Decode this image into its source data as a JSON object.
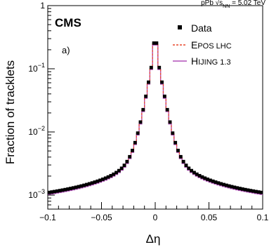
{
  "chart_data": {
    "type": "line",
    "title": "",
    "top_label": "pPb √s_NN = 5.02 TeV",
    "experiment": "CMS",
    "panel_label": "a)",
    "xlabel": "Δη",
    "ylabel": "Fraction of tracklets",
    "xlim": [
      -0.1,
      0.1
    ],
    "ylim": [
      0.0006,
      1
    ],
    "yscale": "log",
    "x_ticks": [
      {
        "value": -0.1,
        "label": "−0.1"
      },
      {
        "value": -0.05,
        "label": "−0.05"
      },
      {
        "value": 0,
        "label": "0"
      },
      {
        "value": 0.05,
        "label": "0.05"
      },
      {
        "value": 0.1,
        "label": "0.1"
      }
    ],
    "y_ticks": [
      {
        "value": 1,
        "base": "1",
        "exp": ""
      },
      {
        "value": 0.1,
        "base": "10",
        "exp": "−1"
      },
      {
        "value": 0.01,
        "base": "10",
        "exp": "−2"
      },
      {
        "value": 0.001,
        "base": "10",
        "exp": "−3"
      }
    ],
    "shape": {
      "peak_value": 0.25,
      "peak_halfwidth": 0.0025,
      "core_width": 0.0044,
      "core_amp": 0.22,
      "tail_amp": 0.0136,
      "tail_width": 0.0068,
      "tail_power": 1.12,
      "floor": 0.00045,
      "bin_width": 0.0025
    },
    "series": [
      {
        "name": "Data",
        "style": "markers",
        "color": "#000000"
      },
      {
        "name": "EPOS LHC",
        "style": "dashed",
        "color": "#e8472a"
      },
      {
        "name": "HIJING 1.3",
        "style": "solid",
        "color": "#b04fb8"
      }
    ],
    "legend": {
      "position": "top-right",
      "entries": [
        {
          "label": "Data"
        },
        {
          "label": "EPOS LHC",
          "first": "E",
          "rest": "POS LHC"
        },
        {
          "label": "HIJING 1.3",
          "first": "H",
          "rest": "IJING 1.3"
        }
      ]
    },
    "grid": false
  }
}
